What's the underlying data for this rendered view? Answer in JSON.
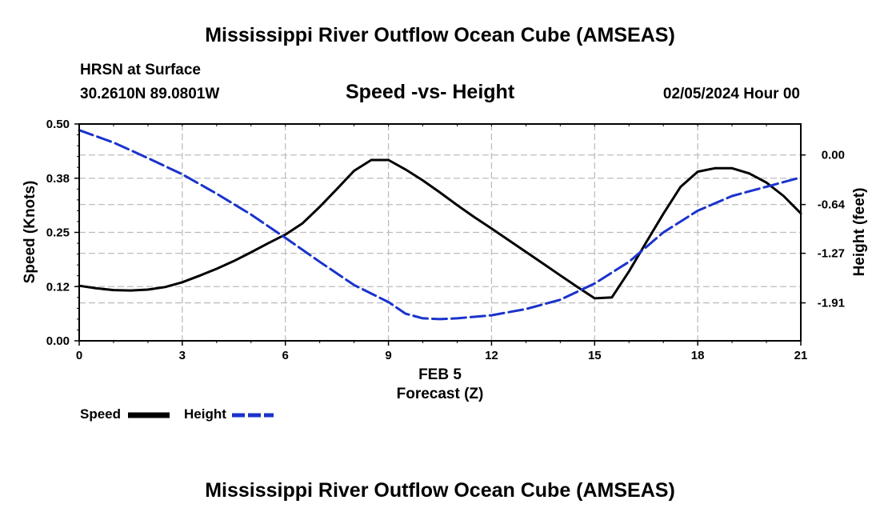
{
  "header": {
    "title": "Mississippi River Outflow Ocean Cube (AMSEAS)",
    "station": "HRSN at Surface",
    "location": "30.2610N  89.0801W",
    "subtitle": "Speed -vs- Height",
    "datetime": "02/05/2024 Hour 00"
  },
  "footer": {
    "title": "Mississippi River Outflow Ocean Cube (AMSEAS)"
  },
  "chart_data": {
    "type": "line",
    "title": "Speed -vs- Height",
    "xlabel_top": "FEB 5",
    "xlabel": "Forecast (Z)",
    "ylabel_left": "Speed (Knots)",
    "ylabel_right": "Height (feet)",
    "xlim": [
      0,
      21
    ],
    "x_ticks": [
      0,
      3,
      6,
      9,
      12,
      15,
      18,
      21
    ],
    "ylim_left": [
      0,
      0.5
    ],
    "y_ticks_left": [
      {
        "value": 0.0,
        "label": "0.00"
      },
      {
        "value": 0.125,
        "label": "0.12"
      },
      {
        "value": 0.25,
        "label": "0.25"
      },
      {
        "value": 0.375,
        "label": "0.38"
      },
      {
        "value": 0.5,
        "label": "0.50"
      }
    ],
    "ylim_right": [
      -2.4,
      0.4
    ],
    "y_ticks_right": [
      {
        "value": 0.0,
        "label": "0.00"
      },
      {
        "value": -0.64,
        "label": "-0.64"
      },
      {
        "value": -1.27,
        "label": "-1.27"
      },
      {
        "value": -1.91,
        "label": "-1.91"
      }
    ],
    "grid": true,
    "colors": {
      "speed": "#000000",
      "height": "#1a33cc",
      "grid": "#bdbdbd"
    },
    "series": [
      {
        "name": "Speed",
        "axis": "left",
        "style": "solid",
        "x": [
          0,
          0.5,
          1,
          1.5,
          2,
          2.5,
          3,
          3.5,
          4,
          4.5,
          5,
          5.5,
          6,
          6.5,
          7,
          7.5,
          8,
          8.5,
          9,
          9.5,
          10,
          10.5,
          11,
          11.5,
          12,
          12.5,
          13,
          13.5,
          14,
          14.5,
          15,
          15.5,
          16,
          16.5,
          17,
          17.5,
          18,
          18.5,
          19,
          19.5,
          20,
          20.5,
          21
        ],
        "values": [
          0.127,
          0.121,
          0.117,
          0.116,
          0.118,
          0.124,
          0.135,
          0.15,
          0.166,
          0.184,
          0.204,
          0.225,
          0.245,
          0.271,
          0.309,
          0.35,
          0.392,
          0.417,
          0.417,
          0.395,
          0.37,
          0.342,
          0.313,
          0.285,
          0.259,
          0.232,
          0.205,
          0.178,
          0.151,
          0.124,
          0.098,
          0.1,
          0.16,
          0.227,
          0.293,
          0.355,
          0.39,
          0.398,
          0.398,
          0.386,
          0.365,
          0.334,
          0.294
        ]
      },
      {
        "name": "Height",
        "axis": "right",
        "style": "dashed",
        "x": [
          0,
          1,
          2,
          3,
          4,
          5,
          6,
          7,
          8,
          9,
          9.5,
          10,
          10.5,
          11,
          12,
          13,
          14,
          15,
          15.5,
          16,
          17,
          18,
          19,
          20,
          21
        ],
        "values": [
          0.32,
          0.16,
          -0.04,
          -0.25,
          -0.5,
          -0.77,
          -1.07,
          -1.38,
          -1.68,
          -1.9,
          -2.05,
          -2.11,
          -2.12,
          -2.11,
          -2.07,
          -1.99,
          -1.87,
          -1.66,
          -1.52,
          -1.38,
          -1.0,
          -0.72,
          -0.53,
          -0.41,
          -0.29
        ]
      }
    ],
    "legend": [
      {
        "name": "Speed",
        "style": "solid"
      },
      {
        "name": "Height",
        "style": "dashed"
      }
    ]
  }
}
